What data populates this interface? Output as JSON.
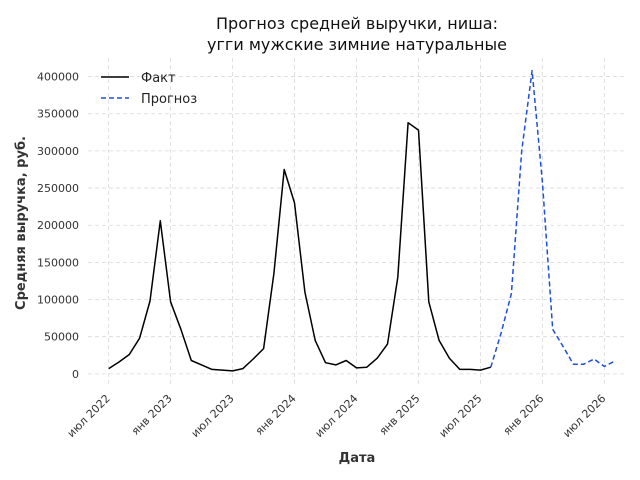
{
  "chart_data": {
    "type": "line",
    "title_lines": [
      "Прогноз средней выручки, ниша:",
      "угги мужские зимние натуральные"
    ],
    "xlabel": "Дата",
    "ylabel": "Средняя выручка, руб.",
    "x_ticks": [
      "июл 2022",
      "янв 2023",
      "июл 2023",
      "янв 2024",
      "июл 2024",
      "янв 2025",
      "июл 2025",
      "янв 2026",
      "июл 2026"
    ],
    "y_ticks": [
      "0",
      "50000",
      "100000",
      "150000",
      "200000",
      "250000",
      "300000",
      "350000",
      "400000"
    ],
    "ylim": [
      -15000,
      425000
    ],
    "grid": true,
    "legend_position": "top-left",
    "series": [
      {
        "name": "Факт",
        "color": "#000000",
        "style": "solid",
        "points": [
          [
            "2022-07",
            7000
          ],
          [
            "2022-08",
            16000
          ],
          [
            "2022-09",
            26000
          ],
          [
            "2022-10",
            48000
          ],
          [
            "2022-11",
            98000
          ],
          [
            "2022-12",
            206000
          ],
          [
            "2023-01",
            97000
          ],
          [
            "2023-02",
            60000
          ],
          [
            "2023-03",
            18000
          ],
          [
            "2023-04",
            12000
          ],
          [
            "2023-05",
            6000
          ],
          [
            "2023-06",
            5000
          ],
          [
            "2023-07",
            4000
          ],
          [
            "2023-08",
            7000
          ],
          [
            "2023-09",
            20000
          ],
          [
            "2023-10",
            34000
          ],
          [
            "2023-11",
            135000
          ],
          [
            "2023-12",
            275000
          ],
          [
            "2024-01",
            230000
          ],
          [
            "2024-02",
            110000
          ],
          [
            "2024-03",
            45000
          ],
          [
            "2024-04",
            15000
          ],
          [
            "2024-05",
            12000
          ],
          [
            "2024-06",
            18000
          ],
          [
            "2024-07",
            8000
          ],
          [
            "2024-08",
            9000
          ],
          [
            "2024-09",
            21000
          ],
          [
            "2024-10",
            40000
          ],
          [
            "2024-11",
            130000
          ],
          [
            "2024-12",
            338000
          ],
          [
            "2025-01",
            328000
          ],
          [
            "2025-02",
            97000
          ],
          [
            "2025-03",
            45000
          ],
          [
            "2025-04",
            21000
          ],
          [
            "2025-05",
            6000
          ],
          [
            "2025-06",
            6000
          ],
          [
            "2025-07",
            5000
          ],
          [
            "2025-08",
            9000
          ]
        ]
      },
      {
        "name": "Прогноз",
        "color": "#1f4fd8",
        "style": "dashed",
        "points": [
          [
            "2025-08",
            9000
          ],
          [
            "2025-09",
            55000
          ],
          [
            "2025-10",
            108000
          ],
          [
            "2025-11",
            300000
          ],
          [
            "2025-12",
            408000
          ],
          [
            "2026-01",
            258000
          ],
          [
            "2026-02",
            60000
          ],
          [
            "2026-03",
            37000
          ],
          [
            "2026-04",
            13000
          ],
          [
            "2026-05",
            13000
          ],
          [
            "2026-06",
            20000
          ],
          [
            "2026-07",
            10000
          ],
          [
            "2026-08",
            17000
          ]
        ]
      }
    ]
  }
}
